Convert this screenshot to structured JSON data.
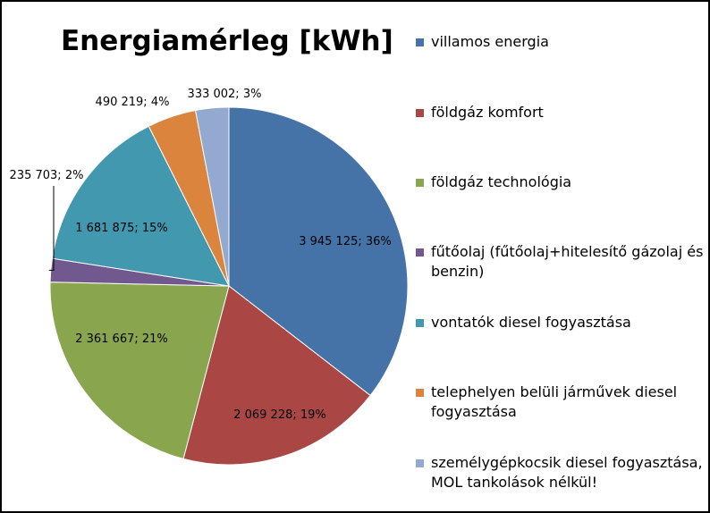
{
  "chart_data": {
    "type": "pie",
    "title": "Energiamérleg [kWh]",
    "legend_position": "right",
    "slices": [
      {
        "name": "villamos energia",
        "value": 3945125,
        "label": "3 945 125; 36%",
        "color": "#4572A7"
      },
      {
        "name": "földgáz komfort",
        "value": 2069228,
        "label": "2 069 228; 19%",
        "color": "#AA4643"
      },
      {
        "name": "földgáz technológia",
        "value": 2361667,
        "label": "2 361 667; 21%",
        "color": "#89A54E"
      },
      {
        "name": "fűtőolaj (fűtőolaj+hitelesítő gázolaj és benzin)",
        "value": 235703,
        "label": "235 703; 2%",
        "color": "#71588F"
      },
      {
        "name": "vontatók diesel fogyasztása",
        "value": 1681875,
        "label": "1 681 875; 15%",
        "color": "#4198AF"
      },
      {
        "name": "telephelyen belüli járművek diesel fogyasztása",
        "value": 490219,
        "label": "490 219; 4%",
        "color": "#DB843D"
      },
      {
        "name": "személygépkocsik diesel fogyasztása, MOL tankolások nélkül!",
        "value": 333002,
        "label": "333 002; 3%",
        "color": "#93A9CF"
      }
    ]
  }
}
